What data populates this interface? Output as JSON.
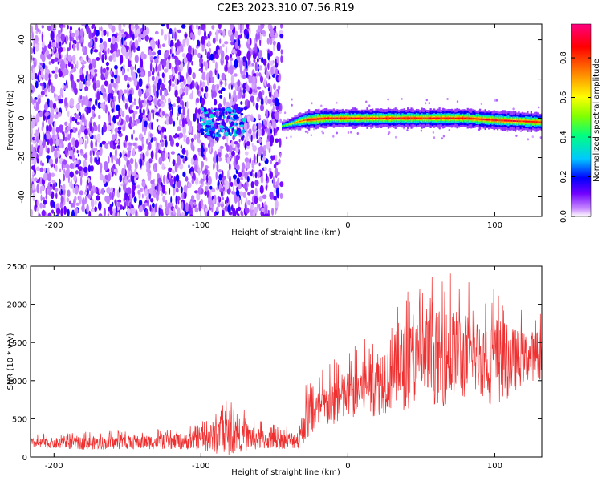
{
  "title": "C2E3.2023.310.07.56.R19",
  "chart_data": [
    {
      "type": "heatmap",
      "name": "spectrogram",
      "xlabel": "Height of straight line (km)",
      "ylabel": "Frequency (Hz)",
      "xlim": [
        -216,
        132
      ],
      "ylim": [
        -50,
        48
      ],
      "xticks": [
        -200,
        -100,
        0,
        100
      ],
      "yticks": [
        -40,
        -20,
        0,
        20,
        40
      ],
      "colorbar": {
        "label": "Normalized spectral amplitude",
        "range": [
          0.0,
          0.97
        ],
        "ticks": [
          0.0,
          0.2,
          0.4,
          0.6,
          0.8
        ],
        "colormap": [
          "#ffffff",
          "#c98cff",
          "#7000ff",
          "#0000ff",
          "#00c8ff",
          "#00ff80",
          "#80ff00",
          "#ffff00",
          "#ff8000",
          "#ff0000",
          "#ff0080"
        ]
      },
      "regions": [
        {
          "label": "noise",
          "x_from": -216,
          "x_to": -45,
          "freq_spread": [
            -50,
            48
          ],
          "amplitude": 0.2
        },
        {
          "label": "emergence",
          "x_from": -100,
          "x_to": -70,
          "center_freq": -2,
          "amplitude": 0.45
        },
        {
          "label": "trace",
          "points": [
            [
              -45,
              -4
            ],
            [
              -30,
              -1
            ],
            [
              -15,
              0
            ],
            [
              0,
              0
            ],
            [
              20,
              0
            ],
            [
              40,
              0
            ],
            [
              60,
              0
            ],
            [
              80,
              0
            ],
            [
              100,
              -1
            ],
            [
              132,
              -2
            ]
          ],
          "amplitude": 0.9
        }
      ]
    },
    {
      "type": "line",
      "name": "snr",
      "xlabel": "Height of straight line (km)",
      "ylabel": "SNR (10 * v/v)",
      "xlim": [
        -216,
        132
      ],
      "ylim": [
        0,
        2500
      ],
      "xticks": [
        -200,
        -100,
        0,
        100
      ],
      "yticks": [
        0,
        500,
        1000,
        1500,
        2000,
        2500
      ],
      "color": "#ee3030",
      "envelope": {
        "x": [
          -216,
          -180,
          -150,
          -120,
          -100,
          -85,
          -75,
          -60,
          -45,
          -33,
          -30,
          -20,
          -10,
          0,
          10,
          20,
          30,
          40,
          50,
          60,
          70,
          80,
          90,
          100,
          110,
          120,
          132
        ],
        "mean": [
          180,
          180,
          190,
          200,
          220,
          280,
          290,
          230,
          210,
          230,
          450,
          600,
          720,
          800,
          900,
          980,
          1100,
          1200,
          1250,
          1300,
          1300,
          1320,
          1300,
          1260,
          1250,
          1300,
          1350
        ],
        "max": [
          300,
          330,
          350,
          380,
          450,
          820,
          700,
          480,
          400,
          450,
          950,
          1100,
          1300,
          1400,
          1550,
          1800,
          2000,
          2250,
          2300,
          2400,
          2490,
          2350,
          2200,
          2400,
          2100,
          1900,
          1950
        ]
      }
    }
  ]
}
